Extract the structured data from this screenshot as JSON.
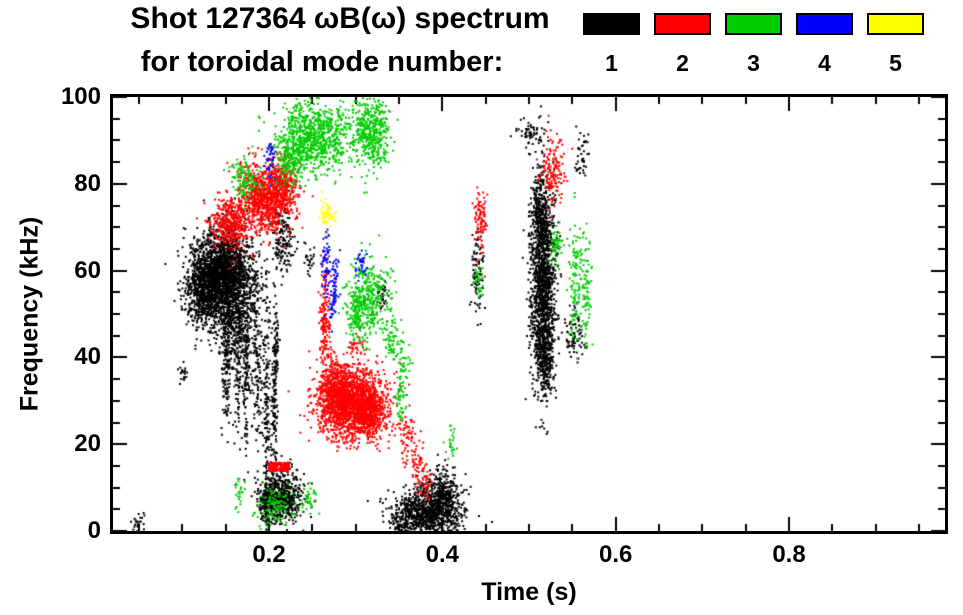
{
  "title_line1": "Shot 127364 ωB(ω) spectrum",
  "title_line2": "for toroidal mode number:",
  "chart_data": {
    "type": "scatter",
    "title": "Shot 127364 ωB(ω) spectrum for toroidal mode number",
    "xlabel": "Time (s)",
    "ylabel": "Frequency (kHz)",
    "xlim": [
      0.02,
      0.98
    ],
    "ylim": [
      0,
      100
    ],
    "x_major_ticks": [
      0.2,
      0.4,
      0.6,
      0.8
    ],
    "x_minor_step": 0.05,
    "y_major_ticks": [
      0,
      20,
      40,
      60,
      80,
      100
    ],
    "y_minor_step": 5,
    "grid": false,
    "legend_position": "top-right",
    "legend_note": "colored boxes labeled by toroidal mode number n=1..5",
    "series": [
      {
        "name": "1",
        "color": "#000000",
        "clusters": [
          {
            "t": 0.145,
            "f": 59,
            "dt": 0.018,
            "df": 5,
            "n": 2200,
            "shape": "g"
          },
          {
            "t": 0.125,
            "f": 55,
            "dt": 0.01,
            "df": 4,
            "n": 500,
            "shape": "g"
          },
          {
            "t": 0.16,
            "f": 48,
            "dt": 0.012,
            "df": 5,
            "n": 350,
            "shape": "g"
          },
          {
            "t": 0.15,
            "f": 40,
            "dt": 0.003,
            "df": 8,
            "n": 150,
            "shape": "g"
          },
          {
            "t": 0.163,
            "f": 38,
            "dt": 0.002,
            "df": 7,
            "n": 100,
            "shape": "g"
          },
          {
            "t": 0.172,
            "f": 35,
            "dt": 0.002,
            "df": 9,
            "n": 120,
            "shape": "g"
          },
          {
            "t": 0.185,
            "f": 38,
            "dt": 0.003,
            "df": 10,
            "n": 140,
            "shape": "g"
          },
          {
            "t": 0.196,
            "f": 30,
            "dt": 0.002,
            "df": 14,
            "n": 160,
            "shape": "g"
          },
          {
            "t": 0.205,
            "f": 25,
            "dt": 0.002,
            "df": 13,
            "n": 150,
            "shape": "g"
          },
          {
            "t": 0.207,
            "f": 42,
            "dt": 0.0015,
            "df": 5,
            "n": 60,
            "shape": "g"
          },
          {
            "t": 0.215,
            "f": 8,
            "dt": 0.012,
            "df": 3,
            "n": 500,
            "shape": "g"
          },
          {
            "t": 0.198,
            "f": 7,
            "dt": 0.006,
            "df": 3,
            "n": 150,
            "shape": "g"
          },
          {
            "t": 0.385,
            "f": 5,
            "dt": 0.02,
            "df": 3,
            "n": 900,
            "shape": "g"
          },
          {
            "t": 0.4,
            "f": 9,
            "dt": 0.008,
            "df": 3,
            "n": 200,
            "shape": "g"
          },
          {
            "t": 0.355,
            "f": 3,
            "dt": 0.008,
            "df": 2,
            "n": 120,
            "shape": "g"
          },
          {
            "t": 0.515,
            "f": 57,
            "dt": 0.007,
            "df": 11,
            "n": 1400,
            "shape": "g"
          },
          {
            "t": 0.512,
            "f": 75,
            "dt": 0.005,
            "df": 4,
            "n": 200,
            "shape": "g"
          },
          {
            "t": 0.518,
            "f": 40,
            "dt": 0.005,
            "df": 4,
            "n": 200,
            "shape": "g"
          },
          {
            "t": 0.44,
            "f": 60,
            "dt": 0.004,
            "df": 5,
            "n": 90,
            "shape": "g"
          },
          {
            "t": 0.55,
            "f": 46,
            "dt": 0.006,
            "df": 3,
            "n": 80,
            "shape": "g"
          },
          {
            "t": 0.5,
            "f": 91,
            "dt": 0.008,
            "df": 2,
            "n": 60,
            "shape": "g"
          },
          {
            "t": 0.56,
            "f": 87,
            "dt": 0.004,
            "df": 3,
            "n": 40,
            "shape": "g"
          },
          {
            "t": 0.215,
            "f": 67,
            "dt": 0.006,
            "df": 4,
            "n": 160,
            "shape": "g"
          },
          {
            "t": 0.1,
            "f": 37,
            "dt": 0.002,
            "df": 1.5,
            "n": 20,
            "shape": "g"
          },
          {
            "t": 0.05,
            "f": 2,
            "dt": 0.004,
            "df": 1.5,
            "n": 25,
            "shape": "g"
          },
          {
            "t": 0.33,
            "f": 55,
            "dt": 0.003,
            "df": 2,
            "n": 30,
            "shape": "g"
          },
          {
            "t": 0.245,
            "f": 62,
            "dt": 0.003,
            "df": 2,
            "n": 25,
            "shape": "g"
          }
        ]
      },
      {
        "name": "2",
        "color": "#ff0000",
        "clusters": [
          {
            "t": 0.155,
            "f": 71,
            "dt": 0.012,
            "df": 3,
            "n": 400,
            "shape": "g"
          },
          {
            "t": 0.195,
            "f": 77,
            "dt": 0.015,
            "df": 4,
            "n": 900,
            "shape": "g"
          },
          {
            "t": 0.215,
            "f": 80,
            "dt": 0.008,
            "df": 3,
            "n": 250,
            "shape": "g"
          },
          {
            "t": 0.295,
            "f": 30,
            "dt": 0.02,
            "df": 4,
            "n": 1800,
            "shape": "g"
          },
          {
            "t": 0.275,
            "f": 33,
            "dt": 0.008,
            "df": 4,
            "n": 350,
            "shape": "g"
          },
          {
            "t": 0.315,
            "f": 27,
            "dt": 0.008,
            "df": 3,
            "n": 300,
            "shape": "g"
          },
          {
            "t": 0.263,
            "f": 48,
            "dt": 0.003,
            "df": 7,
            "n": 160,
            "shape": "g"
          },
          {
            "t": 0.21,
            "f": 15,
            "dt": 0.012,
            "df": 1,
            "n": 180,
            "shape": "u"
          },
          {
            "t": 0.355,
            "f": 22,
            "dt": 0.006,
            "df": 3,
            "n": 60,
            "shape": "g"
          },
          {
            "t": 0.37,
            "f": 16,
            "dt": 0.005,
            "df": 3,
            "n": 50,
            "shape": "g"
          },
          {
            "t": 0.38,
            "f": 11,
            "dt": 0.004,
            "df": 2,
            "n": 35,
            "shape": "g"
          },
          {
            "t": 0.443,
            "f": 72,
            "dt": 0.004,
            "df": 4,
            "n": 90,
            "shape": "g"
          },
          {
            "t": 0.528,
            "f": 83,
            "dt": 0.008,
            "df": 4,
            "n": 150,
            "shape": "g"
          },
          {
            "t": 0.3,
            "f": 43,
            "dt": 0.004,
            "df": 2,
            "n": 35,
            "shape": "g"
          }
        ]
      },
      {
        "name": "3",
        "color": "#00cc00",
        "clusters": [
          {
            "t": 0.25,
            "f": 91,
            "dt": 0.02,
            "df": 4,
            "n": 800,
            "shape": "g"
          },
          {
            "t": 0.225,
            "f": 86,
            "dt": 0.008,
            "df": 3,
            "n": 200,
            "shape": "g"
          },
          {
            "t": 0.315,
            "f": 92,
            "dt": 0.012,
            "df": 4,
            "n": 450,
            "shape": "g"
          },
          {
            "t": 0.17,
            "f": 81,
            "dt": 0.008,
            "df": 3,
            "n": 120,
            "shape": "g"
          },
          {
            "t": 0.315,
            "f": 54,
            "dt": 0.012,
            "df": 4,
            "n": 350,
            "shape": "g"
          },
          {
            "t": 0.3,
            "f": 50,
            "dt": 0.005,
            "df": 3,
            "n": 120,
            "shape": "g"
          },
          {
            "t": 0.34,
            "f": 44,
            "dt": 0.005,
            "df": 3,
            "n": 60,
            "shape": "g"
          },
          {
            "t": 0.355,
            "f": 39,
            "dt": 0.004,
            "df": 3,
            "n": 45,
            "shape": "g"
          },
          {
            "t": 0.553,
            "f": 57,
            "dt": 0.004,
            "df": 7,
            "n": 120,
            "shape": "g"
          },
          {
            "t": 0.565,
            "f": 55,
            "dt": 0.003,
            "df": 6,
            "n": 80,
            "shape": "g"
          },
          {
            "t": 0.53,
            "f": 66,
            "dt": 0.004,
            "df": 3,
            "n": 50,
            "shape": "g"
          },
          {
            "t": 0.205,
            "f": 6,
            "dt": 0.01,
            "df": 2.5,
            "n": 120,
            "shape": "g"
          },
          {
            "t": 0.245,
            "f": 7,
            "dt": 0.004,
            "df": 2,
            "n": 40,
            "shape": "g"
          },
          {
            "t": 0.165,
            "f": 9,
            "dt": 0.003,
            "df": 2,
            "n": 25,
            "shape": "g"
          },
          {
            "t": 0.35,
            "f": 30,
            "dt": 0.004,
            "df": 2,
            "n": 40,
            "shape": "g"
          },
          {
            "t": 0.44,
            "f": 58,
            "dt": 0.003,
            "df": 2,
            "n": 30,
            "shape": "g"
          },
          {
            "t": 0.41,
            "f": 20,
            "dt": 0.003,
            "df": 2,
            "n": 25,
            "shape": "g"
          }
        ]
      },
      {
        "name": "4",
        "color": "#0000ff",
        "clusters": [
          {
            "t": 0.2,
            "f": 86,
            "dt": 0.003,
            "df": 2.5,
            "n": 40,
            "shape": "g"
          },
          {
            "t": 0.265,
            "f": 62,
            "dt": 0.002,
            "df": 4,
            "n": 60,
            "shape": "g"
          },
          {
            "t": 0.275,
            "f": 58,
            "dt": 0.002,
            "df": 3,
            "n": 40,
            "shape": "g"
          },
          {
            "t": 0.272,
            "f": 52,
            "dt": 0.002,
            "df": 2,
            "n": 30,
            "shape": "g"
          },
          {
            "t": 0.305,
            "f": 62,
            "dt": 0.003,
            "df": 2,
            "n": 30,
            "shape": "g"
          }
        ]
      },
      {
        "name": "5",
        "color": "#ffff00",
        "clusters": [
          {
            "t": 0.266,
            "f": 73,
            "dt": 0.004,
            "df": 2,
            "n": 60,
            "shape": "g"
          }
        ]
      }
    ]
  }
}
